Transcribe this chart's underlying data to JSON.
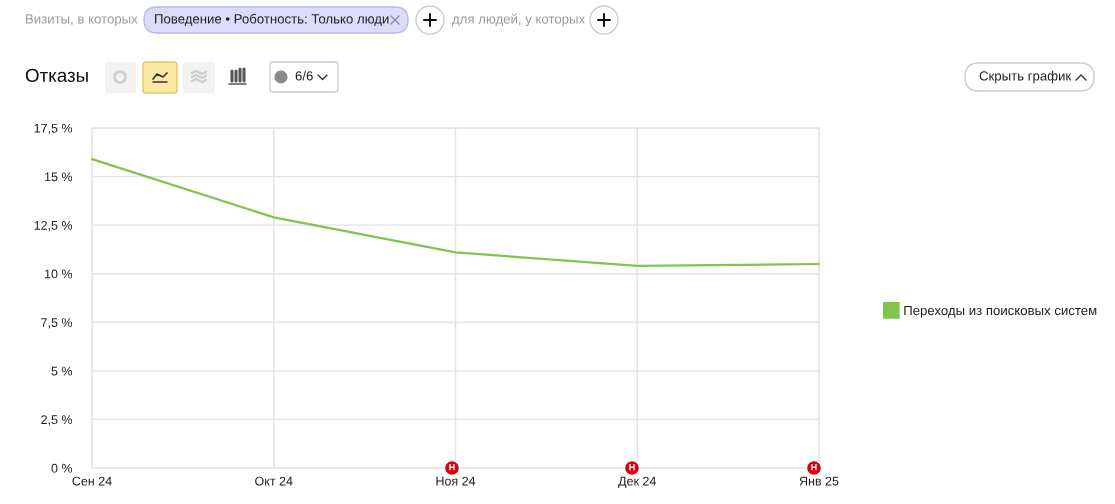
{
  "chart_data": {
    "type": "line",
    "title": "Отказы",
    "categories": [
      "Сен 24",
      "Окт 24",
      "Ноя 24",
      "Дек 24",
      "Янв 25"
    ],
    "series": [
      {
        "name": "Переходы из поисковых систем",
        "color": "#82c44e",
        "values": [
          15.9,
          12.9,
          11.1,
          10.4,
          10.5
        ]
      }
    ],
    "ylim": [
      0,
      17.5
    ],
    "yticks": [
      {
        "value": 0,
        "label": "0 %"
      },
      {
        "value": 2.5,
        "label": "2,5 %"
      },
      {
        "value": 5,
        "label": "5 %"
      },
      {
        "value": 7.5,
        "label": "7,5 %"
      },
      {
        "value": 10,
        "label": "10 %"
      },
      {
        "value": 12.5,
        "label": "12,5 %"
      },
      {
        "value": 15,
        "label": "15 %"
      },
      {
        "value": 17.5,
        "label": "17,5 %"
      }
    ],
    "grid": true,
    "legend": "right",
    "line_style": "solid",
    "annotations": [
      "Визиты, в которых",
      "Поведение • Роботность: Только люди",
      "для людей, у которых",
      "6/6",
      "Скрыть график",
      "Н",
      "Н",
      "Н"
    ]
  }
}
